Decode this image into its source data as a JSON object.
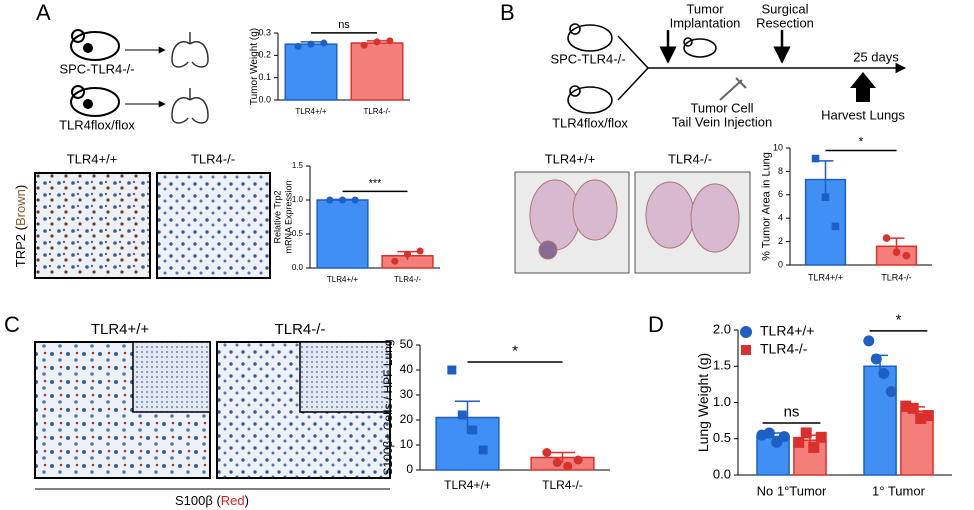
{
  "panels": {
    "A": {
      "label": "A",
      "mice": [
        "SPC-TLR4-/-",
        "TLR4flox/flox"
      ],
      "images": [
        "TLR4+/+",
        "TLR4-/-"
      ],
      "stain": [
        "TRP2 (",
        "Brown",
        ")"
      ]
    },
    "B": {
      "label": "B",
      "mice": [
        "SPC-TLR4-/-",
        "TLR4flox/flox"
      ],
      "images": [
        "TLR4+/+",
        "TLR4-/-"
      ],
      "timeline": {
        "implant": [
          "Tumor",
          "Implantation"
        ],
        "resection": [
          "Surgical",
          "Resection"
        ],
        "duration": "25 days",
        "injection": [
          "Tumor Cell",
          "Tail Vein Injection"
        ],
        "harvest": "Harvest Lungs"
      }
    },
    "C": {
      "label": "C",
      "images": [
        "TLR4+/+",
        "TLR4-/-"
      ],
      "stain": [
        "S100β (",
        "Red",
        ")"
      ]
    },
    "D": {
      "label": "D"
    }
  },
  "chart_data": [
    {
      "type": "bar",
      "ylabel": [
        "Tumor Weight (g)"
      ],
      "categories": [
        "TLR4+/+",
        "TLR4-/-"
      ],
      "values": [
        0.25,
        0.255
      ],
      "errors": [
        0.01,
        0.01
      ],
      "points": [
        [
          0.24,
          0.25,
          0.255
        ],
        [
          0.245,
          0.26,
          0.265
        ]
      ],
      "colors": [
        "#3f8ff5",
        "#f47f7a"
      ],
      "edge_colors": [
        "#1d5fc4",
        "#d9302c"
      ],
      "markers": [
        "circle",
        "circle"
      ],
      "ylim": [
        0,
        0.3
      ],
      "yticks": [
        {
          "value": 0,
          "label": "0.0"
        },
        0.1,
        0.2,
        0.3
      ],
      "annotation": "ns"
    },
    {
      "type": "bar",
      "ylabel": [
        "Relative Trp2",
        "mRNA Expression"
      ],
      "categories": [
        "TLR4+/+",
        "TLR4-/-"
      ],
      "values": [
        1.0,
        0.18
      ],
      "errors": [
        0.01,
        0.06
      ],
      "points": [
        [
          1.0,
          1.0,
          1.0
        ],
        [
          0.1,
          0.2,
          0.25
        ]
      ],
      "colors": [
        "#3f8ff5",
        "#f47f7a"
      ],
      "edge_colors": [
        "#1d5fc4",
        "#d9302c"
      ],
      "markers": [
        "circle",
        "circle"
      ],
      "ylim": [
        0,
        1.5
      ],
      "yticks": [
        {
          "value": 0,
          "label": "0.0"
        },
        0.5,
        {
          "value": 1,
          "label": "1.0"
        },
        1.5
      ],
      "annotation": "***"
    },
    {
      "type": "bar",
      "ylabel": [
        "% Tumor Area in Lung"
      ],
      "categories": [
        "TLR4+/+",
        "TLR4-/-"
      ],
      "values": [
        7.3,
        1.6
      ],
      "errors": [
        1.6,
        0.7
      ],
      "points": [
        [
          9.1,
          5.8,
          3.3
        ],
        [
          2.3,
          1.1,
          0.8
        ]
      ],
      "colors": [
        "#3f8ff5",
        "#f47f7a"
      ],
      "edge_colors": [
        "#1d5fc4",
        "#d9302c"
      ],
      "markers": [
        "square",
        "circle"
      ],
      "ylim": [
        0,
        10
      ],
      "yticks": [
        0,
        2,
        4,
        6,
        8,
        10
      ],
      "annotation": "*"
    },
    {
      "type": "bar",
      "ylabel": [
        "S100β+ Cells / HPF Lung"
      ],
      "categories": [
        "TLR4+/+",
        "TLR4-/-"
      ],
      "values": [
        21,
        5
      ],
      "errors": [
        6.5,
        2
      ],
      "points": [
        [
          40,
          22,
          16,
          8
        ],
        [
          7,
          3,
          1.5,
          4
        ]
      ],
      "colors": [
        "#3f8ff5",
        "#f47f7a"
      ],
      "edge_colors": [
        "#1d5fc4",
        "#d9302c"
      ],
      "markers": [
        "square",
        "circle"
      ],
      "ylim": [
        0,
        50
      ],
      "yticks": [
        0,
        10,
        20,
        30,
        40,
        50
      ],
      "annotation": "*"
    },
    {
      "type": "grouped_bar",
      "ylabel": [
        "Lung Weight (g)"
      ],
      "categories": [
        "No 1°Tumor",
        "1° Tumor"
      ],
      "series": [
        {
          "name": "TLR4+/+",
          "color": "#3f8ff5",
          "edge_color": "#1d5fc4",
          "marker": "circle",
          "values": [
            0.53,
            1.5
          ],
          "errors": [
            0.05,
            0.15
          ],
          "points": [
            [
              0.55,
              0.58,
              0.45,
              0.53
            ],
            [
              1.85,
              1.6,
              1.4,
              1.15
            ]
          ]
        },
        {
          "name": "TLR4-/-",
          "color": "#f47f7a",
          "edge_color": "#d9302c",
          "marker": "square",
          "values": [
            0.48,
            0.88
          ],
          "errors": [
            0.07,
            0.06
          ],
          "points": [
            [
              0.45,
              0.58,
              0.38,
              0.52
            ],
            [
              0.95,
              0.92,
              0.78,
              0.82
            ]
          ]
        }
      ],
      "ylim": [
        0,
        2
      ],
      "yticks": [
        {
          "value": 0,
          "label": "0.0"
        },
        0.5,
        {
          "value": 1,
          "label": "1.0"
        },
        1.5,
        {
          "value": 2,
          "label": "2.0"
        }
      ],
      "annotations": [
        "ns",
        "*"
      ],
      "legend": "top-left"
    }
  ]
}
